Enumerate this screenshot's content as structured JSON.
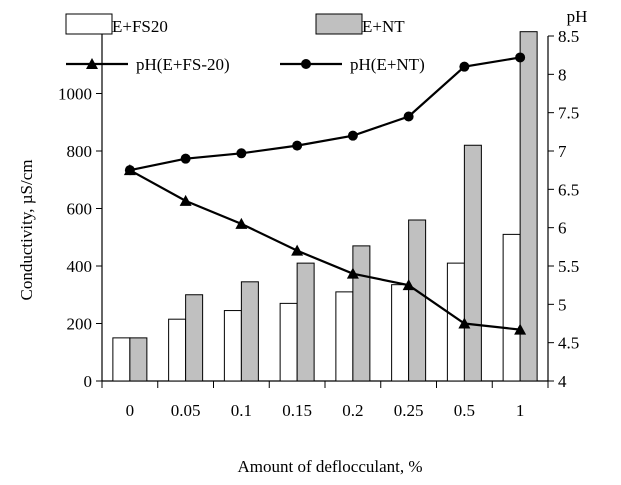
{
  "chart_data": {
    "type": "bar",
    "categories": [
      "0",
      "0.05",
      "0.1",
      "0.15",
      "0.2",
      "0.25",
      "0.5",
      "1"
    ],
    "xlabel": "Amount of deflocculant, %",
    "ylabel": "Conductivity, µS/cm",
    "y2label": "pH",
    "ylim": [
      0,
      1200
    ],
    "yticks": [
      "0",
      "200",
      "400",
      "600",
      "800",
      "1000"
    ],
    "y2lim": [
      4,
      8.5
    ],
    "y2ticks": [
      "4",
      "4.5",
      "5",
      "5.5",
      "6",
      "6.5",
      "7",
      "7.5",
      "8",
      "8.5"
    ],
    "grid": false,
    "legend_position": "top",
    "bar_series": [
      {
        "name": "E+FS20",
        "values": [
          150,
          215,
          245,
          270,
          310,
          335,
          410,
          510
        ],
        "color": "#ffffff"
      },
      {
        "name": "E+NT",
        "values": [
          150,
          300,
          345,
          410,
          470,
          560,
          820,
          1215
        ],
        "color": "#c0c0c0"
      }
    ],
    "line_series": [
      {
        "name": "pH(E+FS-20)",
        "marker": "triangle",
        "values": [
          6.75,
          6.35,
          6.05,
          5.7,
          5.4,
          5.25,
          4.75,
          4.67
        ],
        "color": "#000000"
      },
      {
        "name": "pH(E+NT)",
        "marker": "circle",
        "values": [
          6.75,
          6.9,
          6.97,
          7.07,
          7.2,
          7.45,
          8.1,
          8.22
        ],
        "color": "#000000"
      }
    ]
  }
}
